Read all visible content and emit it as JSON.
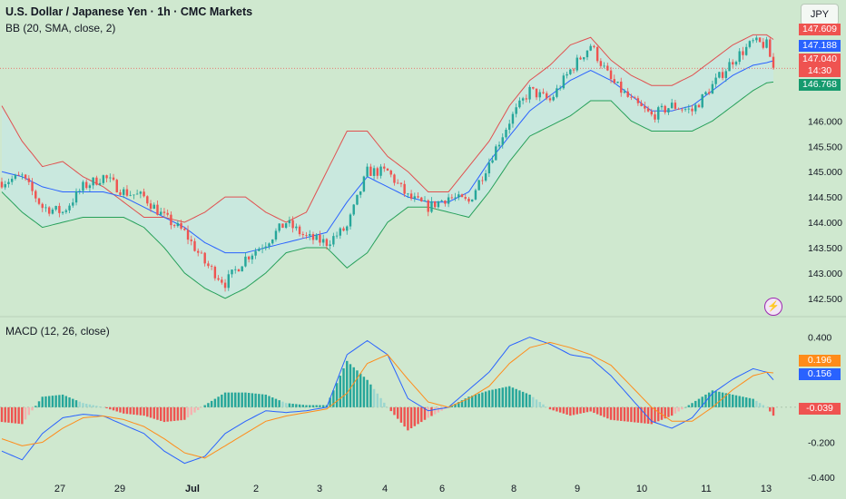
{
  "header": {
    "symbol_title": "U.S. Dollar / Japanese Yen · 1h · CMC Markets",
    "bb_label": "BB (20, SMA, close, 2)",
    "macd_label": "MACD (12, 26, close)",
    "currency_button": "JPY"
  },
  "colors": {
    "background": "#cfe8cf",
    "upper_band": "#e05050",
    "middle_band": "#2962ff",
    "lower_band": "#26a05a",
    "band_fill": "#c8e8e0",
    "up_candle": "#26a69a",
    "down_candle": "#ef5350",
    "macd_line": "#2962ff",
    "signal_line": "#ff8c1a"
  },
  "price_tags": {
    "upper_band": "147.609",
    "middle_band": "147.188",
    "last_price": "147.040",
    "countdown": "14:30",
    "lower_band": "146.768"
  },
  "macd_tags": {
    "signal": "0.196",
    "macd": "0.156",
    "histogram": "-0.039"
  },
  "chart_data": {
    "type": "candlestick",
    "x_tick_labels": [
      "27",
      "29",
      "Jul",
      "2",
      "3",
      "4",
      "6",
      "8",
      "9",
      "10",
      "11",
      "13"
    ],
    "price_axis": {
      "ticks": [
        "146.000",
        "145.500",
        "145.000",
        "144.500",
        "144.000",
        "143.500",
        "143.000",
        "142.500"
      ],
      "range": [
        142.3,
        147.85
      ]
    },
    "macd_axis": {
      "ticks": [
        "0.400",
        "0.200",
        "0.000",
        "-0.200",
        "-0.400"
      ],
      "range": [
        -0.42,
        0.46
      ]
    },
    "candle_path": [
      [
        0,
        144.8
      ],
      [
        6,
        144.9
      ],
      [
        12,
        144.3
      ],
      [
        18,
        144.2
      ],
      [
        24,
        144.7
      ],
      [
        30,
        144.9
      ],
      [
        36,
        144.6
      ],
      [
        42,
        144.5
      ],
      [
        48,
        144.1
      ],
      [
        54,
        143.8
      ],
      [
        60,
        143.2
      ],
      [
        66,
        142.8
      ],
      [
        72,
        143.3
      ],
      [
        78,
        143.6
      ],
      [
        84,
        144.0
      ],
      [
        90,
        143.7
      ],
      [
        96,
        143.6
      ],
      [
        102,
        143.9
      ],
      [
        108,
        145.0
      ],
      [
        114,
        145.0
      ],
      [
        120,
        144.5
      ],
      [
        126,
        144.3
      ],
      [
        132,
        144.5
      ],
      [
        138,
        144.4
      ],
      [
        144,
        145.2
      ],
      [
        150,
        146.0
      ],
      [
        156,
        146.6
      ],
      [
        162,
        146.4
      ],
      [
        168,
        147.0
      ],
      [
        174,
        147.5
      ],
      [
        180,
        146.8
      ],
      [
        186,
        146.4
      ],
      [
        192,
        146.1
      ],
      [
        198,
        146.3
      ],
      [
        204,
        146.2
      ],
      [
        210,
        146.7
      ],
      [
        216,
        147.2
      ],
      [
        222,
        147.55
      ],
      [
        226,
        147.5
      ],
      [
        228,
        147.04
      ]
    ],
    "upper_band_path": [
      [
        0,
        146.3
      ],
      [
        6,
        145.6
      ],
      [
        12,
        145.1
      ],
      [
        18,
        145.2
      ],
      [
        24,
        144.9
      ],
      [
        30,
        144.7
      ],
      [
        36,
        144.4
      ],
      [
        42,
        144.1
      ],
      [
        48,
        144.1
      ],
      [
        54,
        144.0
      ],
      [
        60,
        144.2
      ],
      [
        66,
        144.5
      ],
      [
        72,
        144.5
      ],
      [
        78,
        144.2
      ],
      [
        84,
        144.0
      ],
      [
        90,
        144.2
      ],
      [
        96,
        145.0
      ],
      [
        102,
        145.8
      ],
      [
        108,
        145.8
      ],
      [
        114,
        145.3
      ],
      [
        120,
        145.0
      ],
      [
        126,
        144.6
      ],
      [
        132,
        144.6
      ],
      [
        138,
        145.1
      ],
      [
        144,
        145.6
      ],
      [
        150,
        146.3
      ],
      [
        156,
        146.8
      ],
      [
        162,
        147.1
      ],
      [
        168,
        147.5
      ],
      [
        174,
        147.65
      ],
      [
        180,
        147.2
      ],
      [
        186,
        146.9
      ],
      [
        192,
        146.7
      ],
      [
        198,
        146.7
      ],
      [
        204,
        146.9
      ],
      [
        210,
        147.2
      ],
      [
        216,
        147.5
      ],
      [
        222,
        147.7
      ],
      [
        226,
        147.7
      ],
      [
        228,
        147.609
      ]
    ],
    "middle_band_path": [
      [
        0,
        145.0
      ],
      [
        6,
        144.9
      ],
      [
        12,
        144.7
      ],
      [
        18,
        144.6
      ],
      [
        24,
        144.6
      ],
      [
        30,
        144.6
      ],
      [
        36,
        144.5
      ],
      [
        42,
        144.3
      ],
      [
        48,
        144.1
      ],
      [
        54,
        143.9
      ],
      [
        60,
        143.6
      ],
      [
        66,
        143.4
      ],
      [
        72,
        143.4
      ],
      [
        78,
        143.5
      ],
      [
        84,
        143.6
      ],
      [
        90,
        143.7
      ],
      [
        96,
        143.8
      ],
      [
        102,
        144.4
      ],
      [
        108,
        144.9
      ],
      [
        114,
        144.7
      ],
      [
        120,
        144.5
      ],
      [
        126,
        144.4
      ],
      [
        132,
        144.4
      ],
      [
        138,
        144.6
      ],
      [
        144,
        145.2
      ],
      [
        150,
        145.7
      ],
      [
        156,
        146.2
      ],
      [
        162,
        146.5
      ],
      [
        168,
        146.8
      ],
      [
        174,
        147.0
      ],
      [
        180,
        146.8
      ],
      [
        186,
        146.5
      ],
      [
        192,
        146.2
      ],
      [
        198,
        146.2
      ],
      [
        204,
        146.3
      ],
      [
        210,
        146.6
      ],
      [
        216,
        146.9
      ],
      [
        222,
        147.1
      ],
      [
        226,
        147.15
      ],
      [
        228,
        147.188
      ]
    ],
    "lower_band_path": [
      [
        0,
        144.6
      ],
      [
        6,
        144.2
      ],
      [
        12,
        143.9
      ],
      [
        18,
        144.0
      ],
      [
        24,
        144.1
      ],
      [
        30,
        144.1
      ],
      [
        36,
        144.1
      ],
      [
        42,
        143.9
      ],
      [
        48,
        143.5
      ],
      [
        54,
        143.0
      ],
      [
        60,
        142.7
      ],
      [
        66,
        142.5
      ],
      [
        72,
        142.7
      ],
      [
        78,
        143.0
      ],
      [
        84,
        143.4
      ],
      [
        90,
        143.5
      ],
      [
        96,
        143.5
      ],
      [
        102,
        143.1
      ],
      [
        108,
        143.4
      ],
      [
        114,
        144.0
      ],
      [
        120,
        144.3
      ],
      [
        126,
        144.3
      ],
      [
        132,
        144.2
      ],
      [
        138,
        144.1
      ],
      [
        144,
        144.6
      ],
      [
        150,
        145.2
      ],
      [
        156,
        145.7
      ],
      [
        162,
        145.9
      ],
      [
        168,
        146.1
      ],
      [
        174,
        146.4
      ],
      [
        180,
        146.4
      ],
      [
        186,
        146.0
      ],
      [
        192,
        145.8
      ],
      [
        198,
        145.8
      ],
      [
        204,
        145.8
      ],
      [
        210,
        146.0
      ],
      [
        216,
        146.3
      ],
      [
        222,
        146.6
      ],
      [
        226,
        146.75
      ],
      [
        228,
        146.768
      ]
    ],
    "macd_path": [
      [
        0,
        -0.25
      ],
      [
        6,
        -0.3
      ],
      [
        12,
        -0.15
      ],
      [
        18,
        -0.06
      ],
      [
        24,
        -0.04
      ],
      [
        30,
        -0.05
      ],
      [
        36,
        -0.1
      ],
      [
        42,
        -0.15
      ],
      [
        48,
        -0.25
      ],
      [
        54,
        -0.32
      ],
      [
        60,
        -0.28
      ],
      [
        66,
        -0.15
      ],
      [
        72,
        -0.08
      ],
      [
        78,
        -0.02
      ],
      [
        84,
        -0.03
      ],
      [
        90,
        -0.02
      ],
      [
        96,
        0.0
      ],
      [
        102,
        0.3
      ],
      [
        108,
        0.38
      ],
      [
        114,
        0.3
      ],
      [
        120,
        0.05
      ],
      [
        126,
        -0.02
      ],
      [
        132,
        0.0
      ],
      [
        138,
        0.1
      ],
      [
        144,
        0.2
      ],
      [
        150,
        0.35
      ],
      [
        156,
        0.4
      ],
      [
        162,
        0.36
      ],
      [
        168,
        0.3
      ],
      [
        174,
        0.28
      ],
      [
        180,
        0.18
      ],
      [
        186,
        0.05
      ],
      [
        192,
        -0.08
      ],
      [
        198,
        -0.12
      ],
      [
        204,
        -0.06
      ],
      [
        210,
        0.08
      ],
      [
        216,
        0.16
      ],
      [
        222,
        0.22
      ],
      [
        226,
        0.2
      ],
      [
        228,
        0.156
      ]
    ],
    "signal_path": [
      [
        0,
        -0.18
      ],
      [
        6,
        -0.22
      ],
      [
        12,
        -0.2
      ],
      [
        18,
        -0.12
      ],
      [
        24,
        -0.06
      ],
      [
        30,
        -0.05
      ],
      [
        36,
        -0.07
      ],
      [
        42,
        -0.11
      ],
      [
        48,
        -0.18
      ],
      [
        54,
        -0.26
      ],
      [
        60,
        -0.29
      ],
      [
        66,
        -0.22
      ],
      [
        72,
        -0.15
      ],
      [
        78,
        -0.08
      ],
      [
        84,
        -0.05
      ],
      [
        90,
        -0.03
      ],
      [
        96,
        -0.01
      ],
      [
        102,
        0.08
      ],
      [
        108,
        0.25
      ],
      [
        114,
        0.3
      ],
      [
        120,
        0.16
      ],
      [
        126,
        0.03
      ],
      [
        132,
        0.0
      ],
      [
        138,
        0.05
      ],
      [
        144,
        0.12
      ],
      [
        150,
        0.25
      ],
      [
        156,
        0.34
      ],
      [
        162,
        0.37
      ],
      [
        168,
        0.34
      ],
      [
        174,
        0.3
      ],
      [
        180,
        0.24
      ],
      [
        186,
        0.12
      ],
      [
        192,
        0.0
      ],
      [
        198,
        -0.08
      ],
      [
        204,
        -0.08
      ],
      [
        210,
        0.0
      ],
      [
        216,
        0.1
      ],
      [
        222,
        0.18
      ],
      [
        226,
        0.2
      ],
      [
        228,
        0.196
      ]
    ]
  }
}
